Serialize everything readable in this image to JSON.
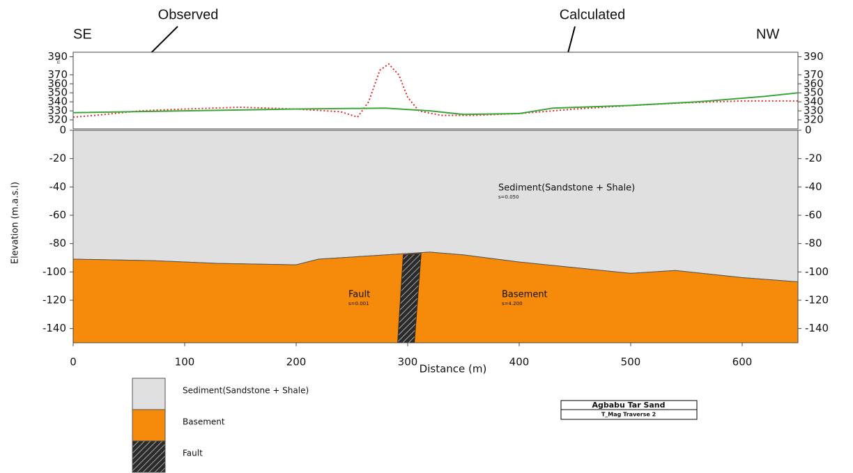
{
  "chart_data": [
    {
      "type": "line",
      "ends": [
        "SE",
        "NW"
      ],
      "ylabel": "nT",
      "xlim": [
        0,
        650
      ],
      "ylim": [
        310,
        395
      ],
      "yticks": [
        320,
        330,
        340,
        350,
        360,
        370,
        390
      ],
      "series": [
        {
          "name": "Observed",
          "color": "#e8262a",
          "x": [
            0,
            20,
            60,
            100,
            150,
            200,
            240,
            255,
            265,
            275,
            283,
            292,
            300,
            310,
            330,
            360,
            400,
            450,
            500,
            550,
            600,
            650
          ],
          "values": [
            323,
            325,
            330,
            332,
            334,
            332,
            329,
            323,
            340,
            375,
            382,
            370,
            345,
            330,
            325,
            325,
            327,
            332,
            336,
            339,
            341,
            341
          ]
        },
        {
          "name": "Calculated",
          "color": "#3aa63a",
          "x": [
            0,
            100,
            200,
            280,
            320,
            350,
            400,
            430,
            500,
            560,
            620,
            650
          ],
          "values": [
            328,
            330,
            332,
            333,
            330,
            326,
            327,
            333,
            336,
            340,
            346,
            350
          ]
        }
      ]
    },
    {
      "type": "section",
      "title": "Agbabu Tar Sand",
      "subtitle": "T_Mag Traverse 2",
      "xlabel": "Distance (m)",
      "ylabel": "Elevation (m.a.s.l)",
      "xlim": [
        0,
        650
      ],
      "ylim": [
        -150,
        0
      ],
      "xticks": [
        0,
        100,
        200,
        300,
        400,
        500,
        600
      ],
      "yticks": [
        0,
        -20,
        -40,
        -60,
        -80,
        -100,
        -120,
        -140
      ],
      "layers": [
        {
          "name": "Sediment(Sandstone + Shale)",
          "property": "s=0.050",
          "color": "#e0e0e0",
          "x": [
            0,
            650,
            650,
            600,
            540,
            500,
            450,
            400,
            350,
            320,
            280,
            220,
            200,
            130,
            70,
            0
          ],
          "y": [
            0,
            0,
            -107,
            -104,
            -99,
            -101,
            -97,
            -93,
            -88,
            -86,
            -88,
            -91,
            -95,
            -94,
            -92,
            -91
          ]
        },
        {
          "name": "Basement",
          "property": "s=4.200",
          "color": "#f58a0b",
          "x": [
            0,
            70,
            130,
            200,
            220,
            280,
            320,
            350,
            400,
            450,
            500,
            540,
            600,
            650,
            650,
            0
          ],
          "y": [
            -91,
            -92,
            -94,
            -95,
            -91,
            -88,
            -86,
            -88,
            -93,
            -97,
            -101,
            -99,
            -104,
            -107,
            -150,
            -150
          ]
        },
        {
          "name": "Fault",
          "property": "s=0.001",
          "color": "#2b2b2b",
          "hatch": true,
          "x": [
            296,
            312,
            306,
            291
          ],
          "y": [
            -88,
            -87,
            -150,
            -150
          ]
        }
      ]
    }
  ]
}
